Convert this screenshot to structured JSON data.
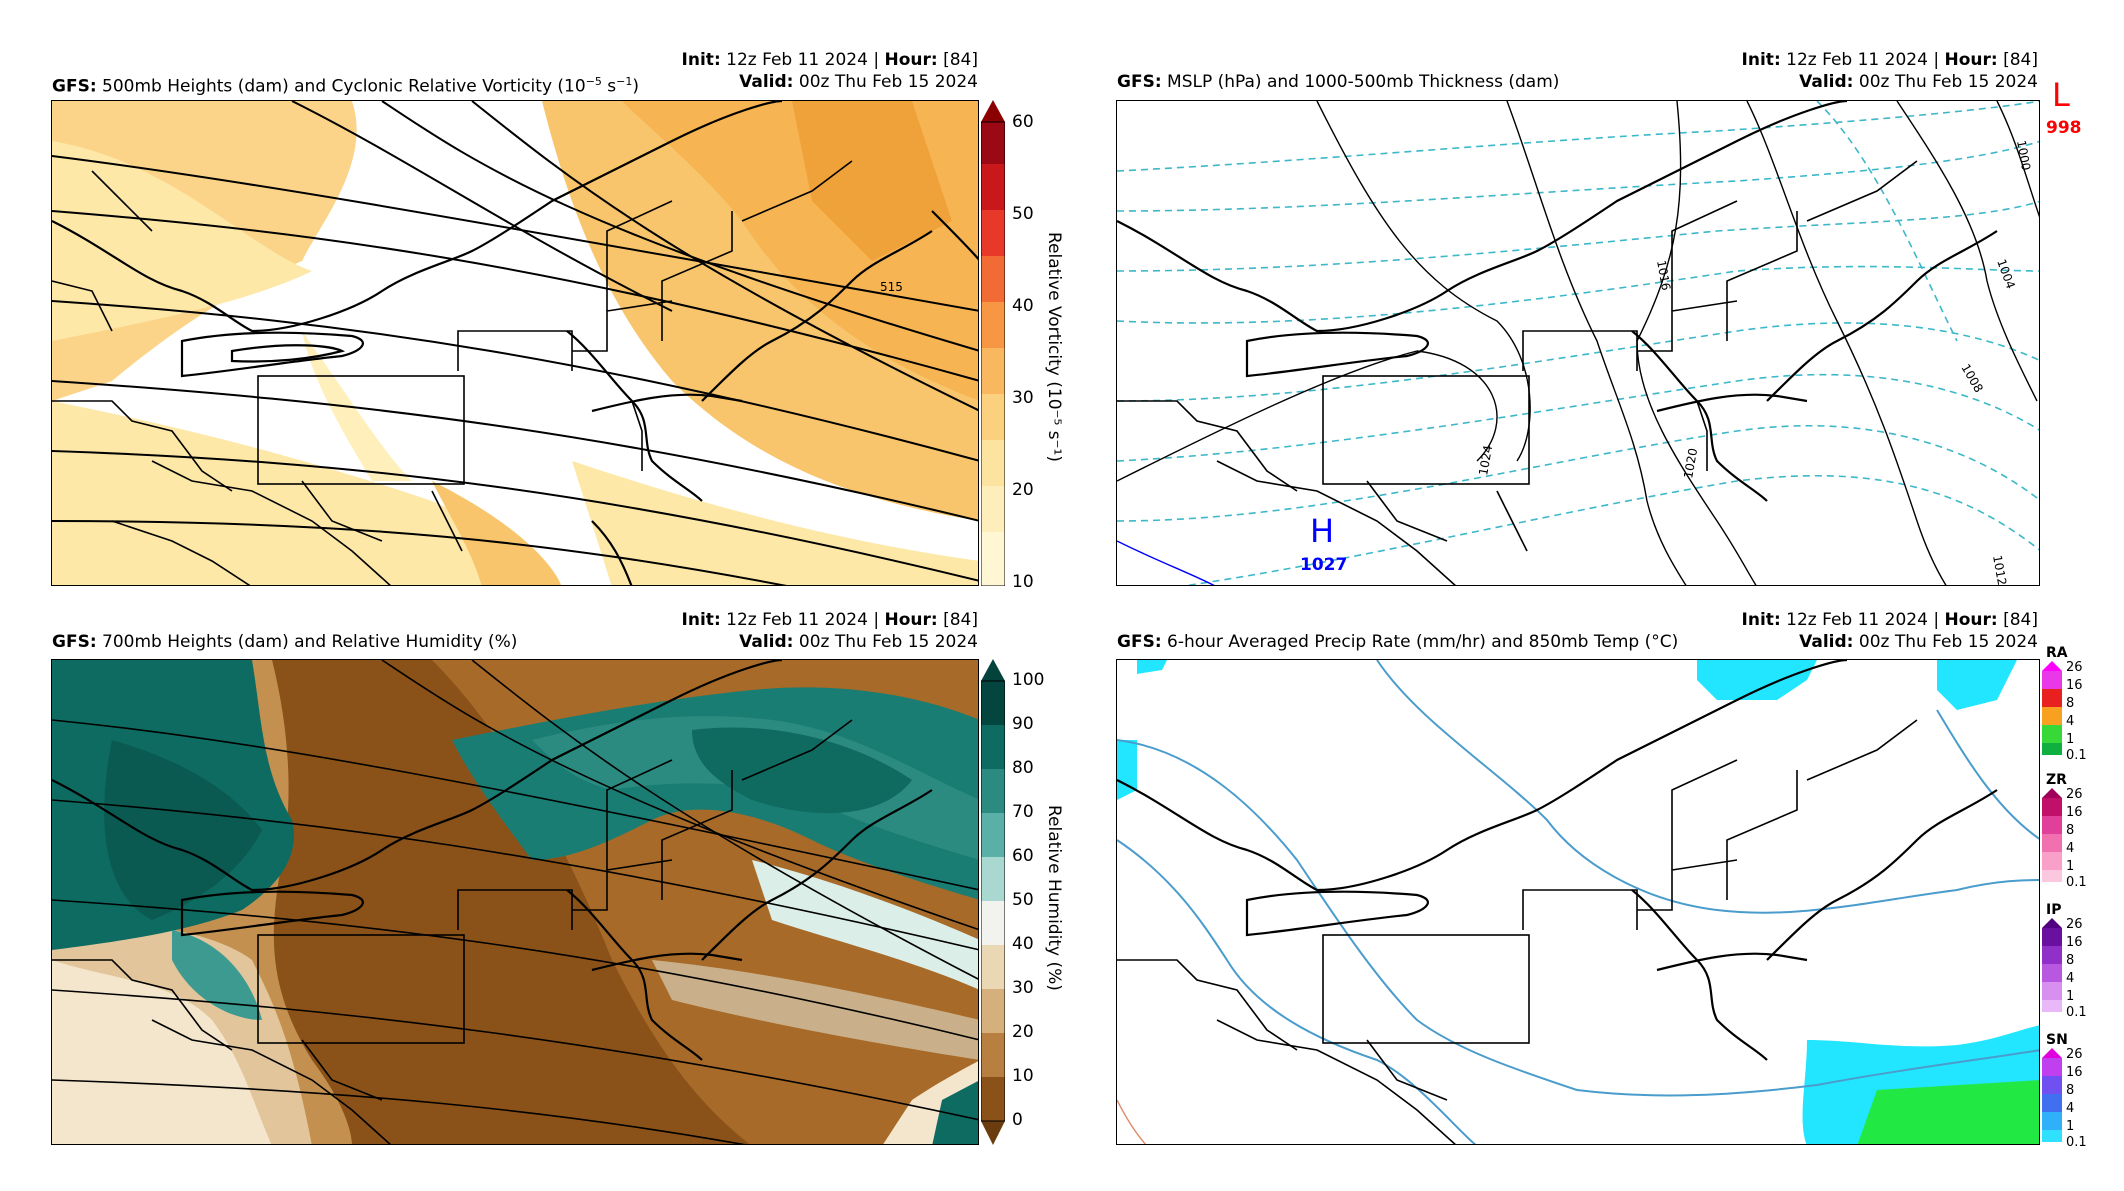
{
  "panels": [
    {
      "model": "GFS",
      "title": "500mb Heights (dam) and Cyclonic Relative Vorticity (10",
      "title_sup": "−5",
      "title_tail": " s",
      "title_sup2": "−1",
      "title_end": ")",
      "init_label": "Init",
      "init_value": "12z Feb 11 2024",
      "hour_label": "Hour",
      "hour_value": "[84]",
      "valid_label": "Valid",
      "valid_value": "00z Thu Feb 15 2024",
      "colorbar": {
        "label": "Relative Vorticity (10⁻⁵ s⁻¹)",
        "ticks": [
          "60",
          "50",
          "40",
          "30",
          "20",
          "10"
        ]
      },
      "contour_label": "515"
    },
    {
      "model": "GFS",
      "title": "MSLP (hPa) and 1000-500mb Thickness (dam)",
      "init_label": "Init",
      "init_value": "12z Feb 11 2024",
      "hour_label": "Hour",
      "hour_value": "[84]",
      "valid_label": "Valid",
      "valid_value": "00z Thu Feb 15 2024",
      "low_symbol": "L",
      "low_value": "998",
      "high_symbol": "H",
      "high_value": "1027",
      "isobar_labels": [
        "1024",
        "1020",
        "1016",
        "1012",
        "1008",
        "1004",
        "1000"
      ]
    },
    {
      "model": "GFS",
      "title": "700mb Heights (dam) and Relative Humidity (%)",
      "init_label": "Init",
      "init_value": "12z Feb 11 2024",
      "hour_label": "Hour",
      "hour_value": "[84]",
      "valid_label": "Valid",
      "valid_value": "00z Thu Feb 15 2024",
      "colorbar": {
        "label": "Relative Humidity (%)",
        "ticks": [
          "100",
          "90",
          "80",
          "70",
          "60",
          "50",
          "40",
          "30",
          "20",
          "10",
          "0"
        ]
      }
    },
    {
      "model": "GFS",
      "title": "6-hour Averaged Precip Rate (mm/hr) and 850mb Temp (°C)",
      "init_label": "Init",
      "init_value": "12z Feb 11 2024",
      "hour_label": "Hour",
      "hour_value": "[84]",
      "valid_label": "Valid",
      "valid_value": "00z Thu Feb 15 2024",
      "ptypes": [
        {
          "name": "RA",
          "ticks": [
            "26",
            "16",
            "8",
            "4",
            "1",
            "0.1"
          ]
        },
        {
          "name": "ZR",
          "ticks": [
            "26",
            "16",
            "8",
            "4",
            "1",
            "0.1"
          ]
        },
        {
          "name": "IP",
          "ticks": [
            "26",
            "16",
            "8",
            "4",
            "1",
            "0.1"
          ]
        },
        {
          "name": "SN",
          "ticks": [
            "26",
            "16",
            "8",
            "4",
            "1",
            "0.1"
          ]
        }
      ]
    }
  ],
  "colors": {
    "vort_low": "#fff5c8",
    "vort_high": "#f6b04c",
    "rh_brown": "#8a5218",
    "rh_teal": "#0d6b60",
    "low_red": "#ff0000",
    "high_blue": "#0000ff",
    "thickness": "#3cb8c8",
    "temp850": "#4a9ccc",
    "snow": "#22e6ff",
    "snow_heavy": "#22e844"
  }
}
